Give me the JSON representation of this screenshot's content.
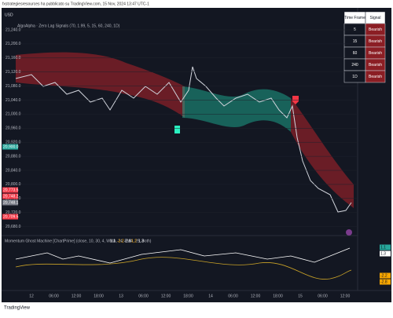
{
  "header": {
    "publisher": "fxstrategiesresources ha pubblicato su TradingView.com, 15 Nov, 2024 13:47 UTC-1",
    "symbol": "USD",
    "indicator": "AlgoAlpha · Zero Lag Signals (70, 1.99, 5, 15, 60, 240, 1D)"
  },
  "price_axis": [
    "21,240.0",
    "21,200.0",
    "21,160.0",
    "21,120.0",
    "21,080.0",
    "21,040.0",
    "21,000.0",
    "20,960.0",
    "20,920.0",
    "20,880.0",
    "20,840.0",
    "20,800.0",
    "20,760.0",
    "20,720.0",
    "20,680.0"
  ],
  "price_tags": [
    {
      "text": "20,900.0",
      "color": "#26a69a"
    },
    {
      "text": "20,773.5",
      "color": "#f23645"
    },
    {
      "text": "20,748.2",
      "color": "#f23645"
    },
    {
      "text": "20,748.1",
      "color": "#787b86"
    },
    {
      "text": "20,709.5",
      "color": "#f23645"
    }
  ],
  "table": {
    "columns": [
      "Time Frame",
      "Signal"
    ],
    "rows": [
      [
        "5",
        "Bearish"
      ],
      [
        "15",
        "Bearish"
      ],
      [
        "60",
        "Bearish"
      ],
      [
        "240",
        "Bearish"
      ],
      [
        "1D",
        "Bearish"
      ]
    ]
  },
  "oscillator": {
    "legend": "Momentum Ghost Machine [ChartPrime] (close, 10, 30, 4, WMA, 24, EMA, 25, Both)",
    "readings": [
      "1.1",
      "-2.2",
      "-2.8",
      "1.2",
      "1.3"
    ],
    "axis_tags": [
      "1.1",
      "1.3",
      "-2.2",
      "-2.8"
    ]
  },
  "time_axis": [
    "12",
    "06:00",
    "12:00",
    "18:00",
    "13",
    "06:00",
    "12:00",
    "18:00",
    "14",
    "06:00",
    "12:00",
    "18:00",
    "15",
    "06:00",
    "12:00"
  ],
  "footer": "TradingView"
}
